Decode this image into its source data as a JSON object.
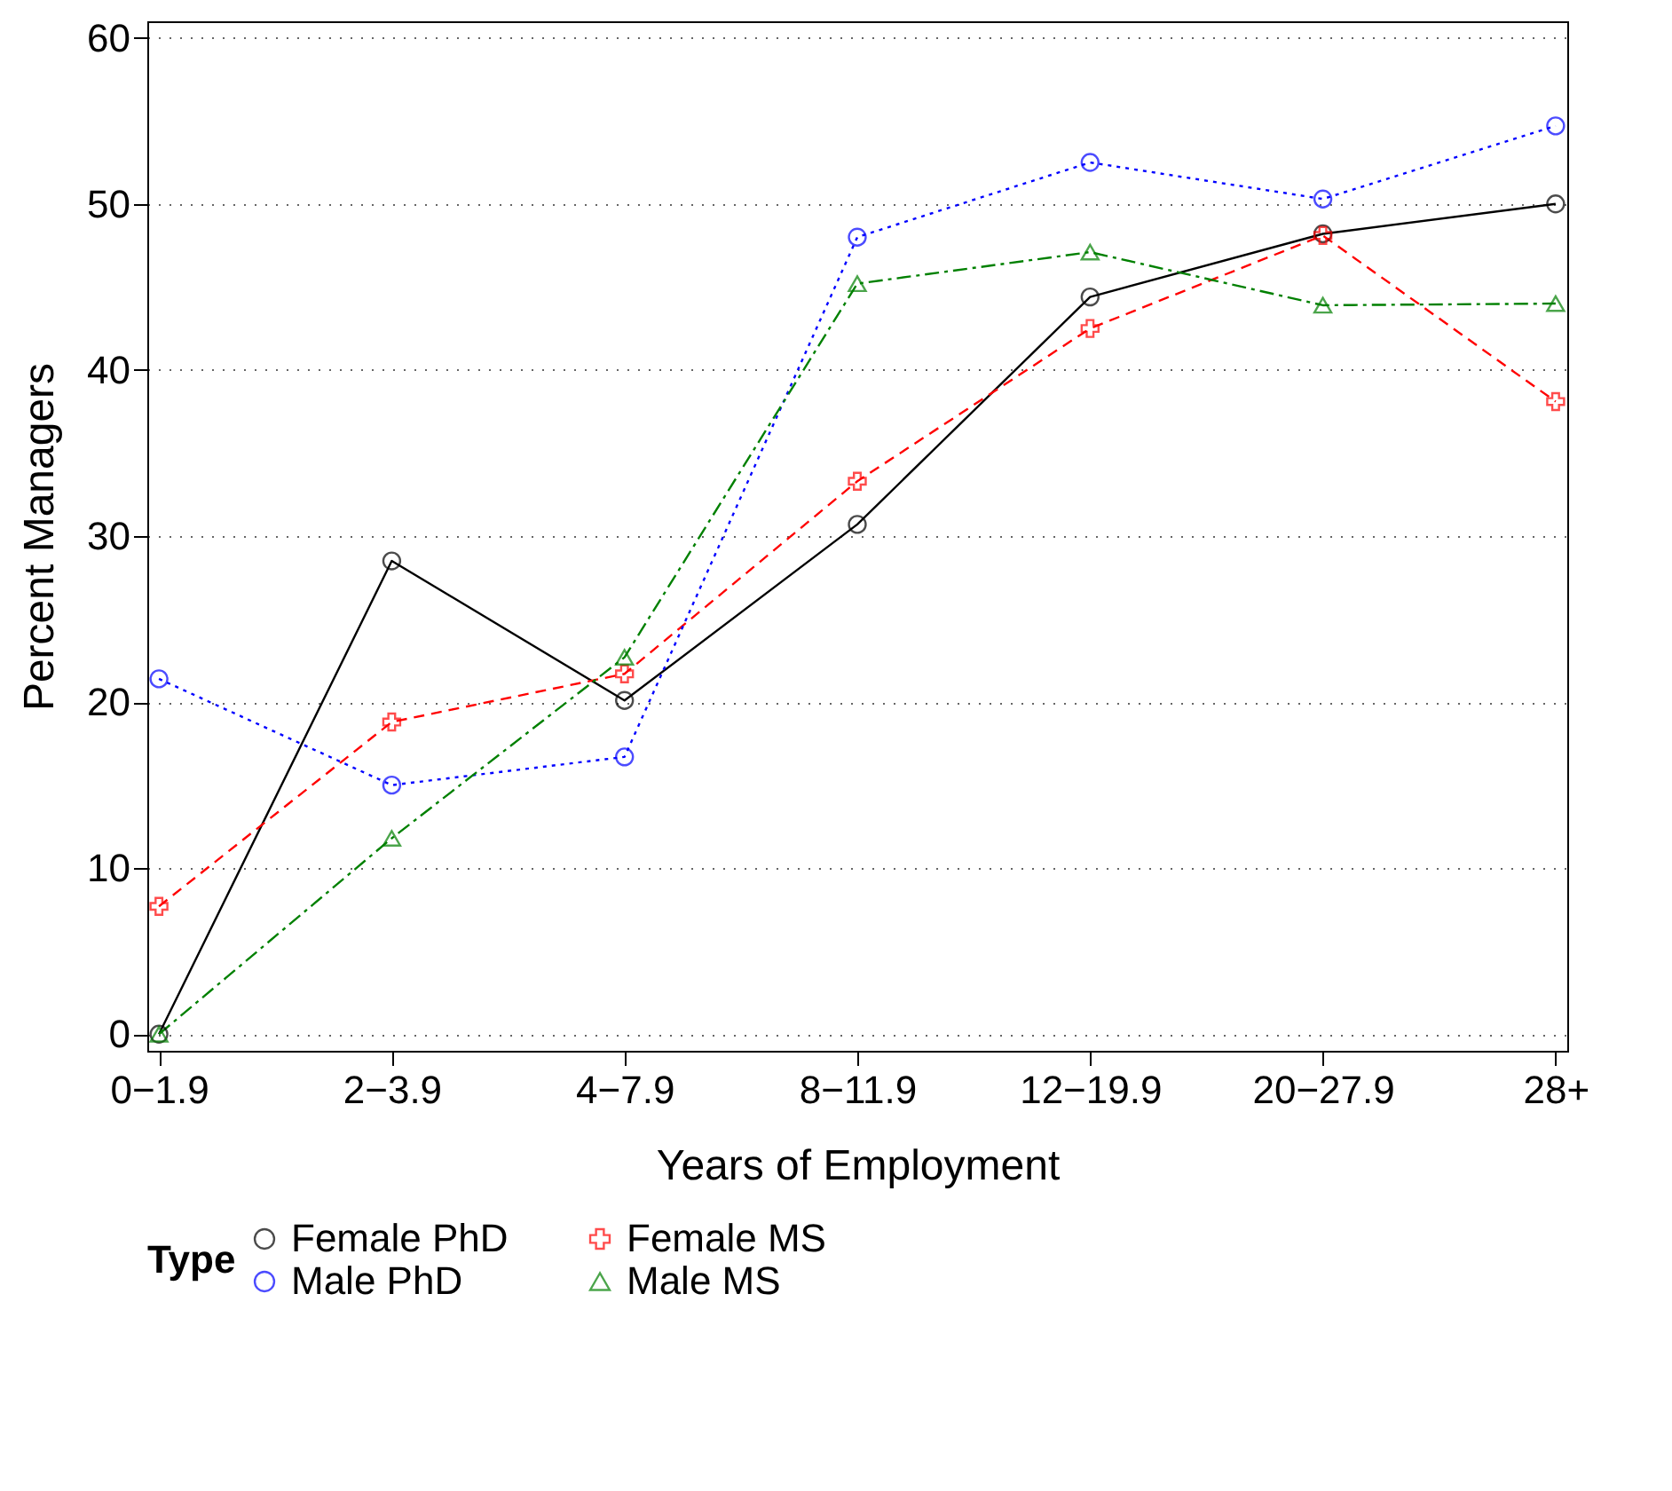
{
  "chart_data": {
    "type": "line",
    "xlabel": "Years of Employment",
    "ylabel": "Percent Managers",
    "legend_title": "Type",
    "categories": [
      "0−1.9",
      "2−3.9",
      "4−7.9",
      "8−11.9",
      "12−19.9",
      "20−27.9",
      "28+"
    ],
    "series": [
      {
        "name": "Female PhD",
        "color": "#000000",
        "marker": "circle",
        "line_style": "solid",
        "values": [
          0,
          28.5,
          20.1,
          30.7,
          44.4,
          48.2,
          50
        ]
      },
      {
        "name": "Female MS",
        "color": "#ff0000",
        "marker": "cross",
        "line_style": "dashed",
        "values": [
          7.7,
          18.8,
          21.7,
          33.3,
          42.5,
          48.1,
          38.1
        ]
      },
      {
        "name": "Male PhD",
        "color": "#0000ff",
        "marker": "circle",
        "line_style": "dotted",
        "values": [
          21.4,
          15.0,
          16.7,
          48.0,
          52.5,
          50.3,
          54.7
        ]
      },
      {
        "name": "Male MS",
        "color": "#008000",
        "marker": "triangle",
        "line_style": "dashdot",
        "values": [
          0,
          11.8,
          22.7,
          45.2,
          47.1,
          43.9,
          44
        ]
      }
    ],
    "ylim": [
      -1,
      61
    ],
    "yticks": [
      0,
      10,
      20,
      30,
      40,
      50,
      60
    ],
    "grid": "y",
    "legend": "bottom"
  }
}
